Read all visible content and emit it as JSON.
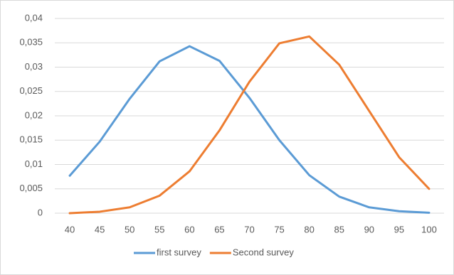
{
  "chart_data": {
    "type": "line",
    "categories": [
      "40",
      "45",
      "50",
      "55",
      "60",
      "65",
      "70",
      "75",
      "80",
      "85",
      "90",
      "95",
      "100"
    ],
    "series": [
      {
        "name": "first survey",
        "color": "#5b9bd5",
        "values": [
          0.0077,
          0.0147,
          0.0235,
          0.0312,
          0.0343,
          0.0313,
          0.0237,
          0.015,
          0.0078,
          0.0034,
          0.0012,
          0.0004,
          0.0001
        ]
      },
      {
        "name": "Second survey",
        "color": "#ed7d31",
        "values": [
          0.0,
          0.0003,
          0.0012,
          0.0036,
          0.0086,
          0.017,
          0.027,
          0.0349,
          0.0363,
          0.0305,
          0.021,
          0.0115,
          0.005
        ]
      }
    ],
    "ylim": [
      0,
      0.04
    ],
    "yticks": [
      0,
      {
        "value": 0.005,
        "label": "0,005"
      },
      {
        "value": 0.01,
        "label": "0,01"
      },
      {
        "value": 0.015,
        "label": "0,015"
      },
      {
        "value": 0.02,
        "label": "0,02"
      },
      {
        "value": 0.025,
        "label": "0,025"
      },
      {
        "value": 0.03,
        "label": "0,03"
      },
      {
        "value": 0.035,
        "label": "0,035"
      },
      {
        "value": 0.04,
        "label": "0,04"
      }
    ],
    "grid": true,
    "legend": "bottom"
  }
}
